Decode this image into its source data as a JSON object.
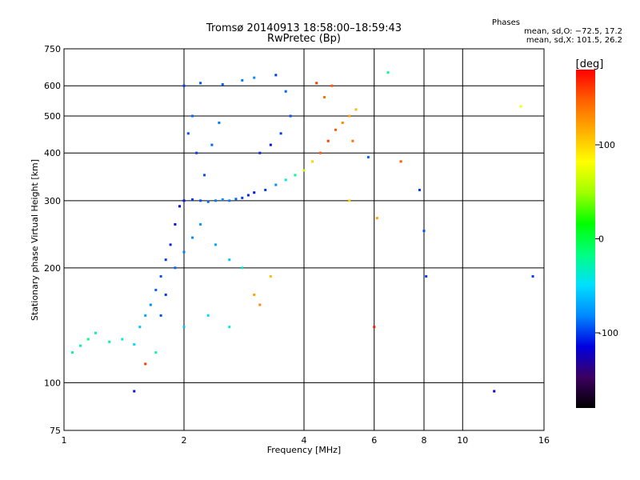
{
  "chart_data": {
    "type": "scatter",
    "title": "Tromsø 20140913 18:58:00–18:59:43",
    "subtitle": "RwPretec (Bp)",
    "xlabel": "Frequency [MHz]",
    "ylabel": "Stationary phase Virtual Height [km]",
    "x_scale": "log",
    "y_scale": "log",
    "xlim": [
      1,
      16
    ],
    "ylim": [
      75,
      750
    ],
    "x_ticks": [
      1,
      2,
      4,
      6,
      8,
      10,
      16
    ],
    "y_ticks": [
      75,
      100,
      200,
      300,
      400,
      500,
      600,
      750
    ],
    "x_gridlines": [
      2,
      4,
      6,
      8,
      10
    ],
    "y_gridlines": [
      100,
      200,
      300,
      400,
      500,
      600
    ],
    "grid": true,
    "stats_header": "Phases",
    "stats_line1": "mean, sd,O: −72.5, 17.2",
    "stats_line2": "mean, sd,X: 101.5, 26.2",
    "colorbar": {
      "label": "[deg]",
      "ticks": [
        100,
        0,
        -100
      ],
      "range": [
        -180,
        180
      ],
      "colors": [
        "#000000",
        "#3c0060",
        "#0000e0",
        "#0088ff",
        "#00e0ff",
        "#00ff80",
        "#00ff00",
        "#a0ff00",
        "#ffff00",
        "#ffb000",
        "#ff6000",
        "#ff0000"
      ]
    },
    "series": [
      {
        "points": [
          [
            1.05,
            120,
            -30
          ],
          [
            1.1,
            125,
            -25
          ],
          [
            1.15,
            130,
            -20
          ],
          [
            1.2,
            135,
            -25
          ],
          [
            1.3,
            128,
            -30
          ],
          [
            1.4,
            130,
            -40
          ],
          [
            1.5,
            126,
            -50
          ],
          [
            1.55,
            140,
            -60
          ],
          [
            1.6,
            150,
            -70
          ],
          [
            1.65,
            160,
            -80
          ],
          [
            1.7,
            175,
            -90
          ],
          [
            1.75,
            190,
            -95
          ],
          [
            1.8,
            210,
            -100
          ],
          [
            1.85,
            230,
            -105
          ],
          [
            1.9,
            260,
            -110
          ],
          [
            1.95,
            290,
            -115
          ],
          [
            2.0,
            300,
            -110
          ],
          [
            2.1,
            302,
            -100
          ],
          [
            2.2,
            300,
            -95
          ],
          [
            2.3,
            298,
            -90
          ],
          [
            2.4,
            300,
            -85
          ],
          [
            2.5,
            302,
            -80
          ],
          [
            2.6,
            300,
            -85
          ],
          [
            2.7,
            303,
            -90
          ],
          [
            2.8,
            305,
            -100
          ],
          [
            2.9,
            310,
            -105
          ],
          [
            3.0,
            315,
            -110
          ],
          [
            3.2,
            320,
            -100
          ],
          [
            3.4,
            330,
            -80
          ],
          [
            3.6,
            340,
            -40
          ],
          [
            3.8,
            350,
            -20
          ],
          [
            4.0,
            360,
            60
          ],
          [
            4.2,
            380,
            100
          ],
          [
            4.4,
            400,
            150
          ],
          [
            4.6,
            430,
            160
          ],
          [
            4.8,
            460,
            150
          ],
          [
            5.0,
            480,
            130
          ],
          [
            5.2,
            500,
            120
          ],
          [
            5.4,
            520,
            110
          ],
          [
            4.5,
            560,
            140
          ],
          [
            4.7,
            600,
            150
          ],
          [
            4.3,
            610,
            160
          ],
          [
            1.75,
            150,
            -95
          ],
          [
            1.8,
            170,
            -100
          ],
          [
            1.9,
            200,
            -90
          ],
          [
            2.0,
            220,
            -85
          ],
          [
            2.1,
            240,
            -80
          ],
          [
            2.2,
            260,
            -75
          ],
          [
            2.4,
            230,
            -70
          ],
          [
            2.6,
            210,
            -60
          ],
          [
            2.8,
            200,
            -40
          ],
          [
            3.0,
            170,
            120
          ],
          [
            3.1,
            160,
            130
          ],
          [
            3.3,
            190,
            110
          ],
          [
            2.0,
            600,
            -100
          ],
          [
            2.2,
            610,
            -95
          ],
          [
            2.5,
            605,
            -90
          ],
          [
            2.8,
            620,
            -85
          ],
          [
            3.0,
            630,
            -80
          ],
          [
            3.4,
            640,
            -100
          ],
          [
            3.6,
            580,
            -90
          ],
          [
            3.7,
            500,
            -95
          ],
          [
            3.5,
            450,
            -100
          ],
          [
            3.3,
            420,
            -110
          ],
          [
            3.1,
            400,
            -105
          ],
          [
            2.05,
            450,
            -95
          ],
          [
            2.1,
            500,
            -90
          ],
          [
            2.15,
            400,
            -100
          ],
          [
            2.25,
            350,
            -95
          ],
          [
            2.35,
            420,
            -90
          ],
          [
            2.45,
            480,
            -85
          ],
          [
            2.0,
            140,
            -60
          ],
          [
            2.3,
            150,
            -50
          ],
          [
            2.6,
            140,
            -40
          ],
          [
            1.7,
            120,
            -30
          ],
          [
            1.6,
            112,
            160
          ],
          [
            1.5,
            95,
            -110
          ],
          [
            5.8,
            390,
            -90
          ],
          [
            6.5,
            650,
            -20
          ],
          [
            7.8,
            320,
            -100
          ],
          [
            8.0,
            250,
            -95
          ],
          [
            8.1,
            190,
            -100
          ],
          [
            12.0,
            95,
            -120
          ],
          [
            14.0,
            530,
            80
          ],
          [
            15.0,
            190,
            -100
          ],
          [
            5.2,
            300,
            100
          ],
          [
            6.1,
            270,
            120
          ],
          [
            5.3,
            430,
            140
          ],
          [
            7.0,
            380,
            150
          ],
          [
            6.0,
            140,
            170
          ]
        ]
      }
    ]
  }
}
